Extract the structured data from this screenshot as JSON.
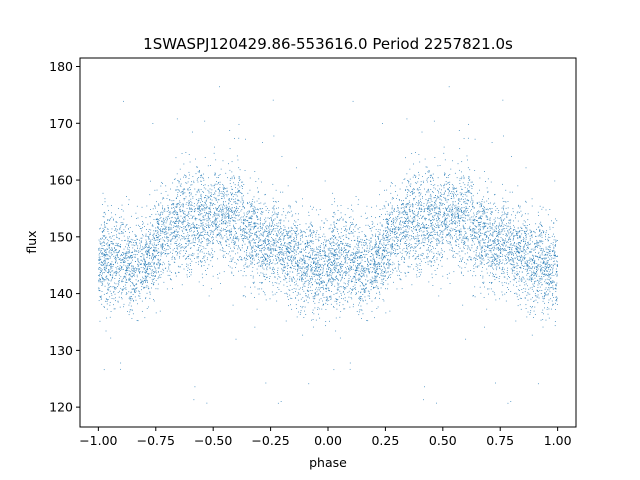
{
  "chart_data": {
    "type": "scatter",
    "title": "1SWASPJ120429.86-553616.0 Period 2257821.0s",
    "xlabel": "phase",
    "ylabel": "flux",
    "xlim": [
      -1.08,
      1.08
    ],
    "ylim": [
      116.5,
      181.5
    ],
    "xticks": [
      -1.0,
      -0.75,
      -0.5,
      -0.25,
      0.0,
      0.25,
      0.5,
      0.75,
      1.0
    ],
    "xtick_labels": [
      "−1.00",
      "−0.75",
      "−0.50",
      "−0.25",
      "0.00",
      "0.25",
      "0.50",
      "0.75",
      "1.00"
    ],
    "yticks": [
      120,
      130,
      140,
      150,
      160,
      170,
      180
    ],
    "ytick_labels": [
      "120",
      "130",
      "140",
      "150",
      "160",
      "170",
      "180"
    ],
    "grid": false,
    "marker_color": "#1f77b4",
    "series": [
      {
        "phase_profile": {
          "phase": [
            0.0,
            0.1,
            0.2,
            0.3,
            0.4,
            0.45,
            0.5,
            0.6,
            0.7,
            0.8,
            0.9,
            1.0
          ],
          "median_flux": [
            145.5,
            145.0,
            146.0,
            149.5,
            153.0,
            154.0,
            153.0,
            152.0,
            150.5,
            147.5,
            145.5,
            145.5
          ],
          "scatter_flux": [
            4.0,
            4.0,
            4.0,
            4.0,
            4.5,
            4.5,
            4.5,
            4.0,
            4.0,
            4.0,
            4.0,
            4.0
          ]
        },
        "points_per_cycle": 4500,
        "flux_range": [
          120,
          178
        ]
      }
    ]
  }
}
